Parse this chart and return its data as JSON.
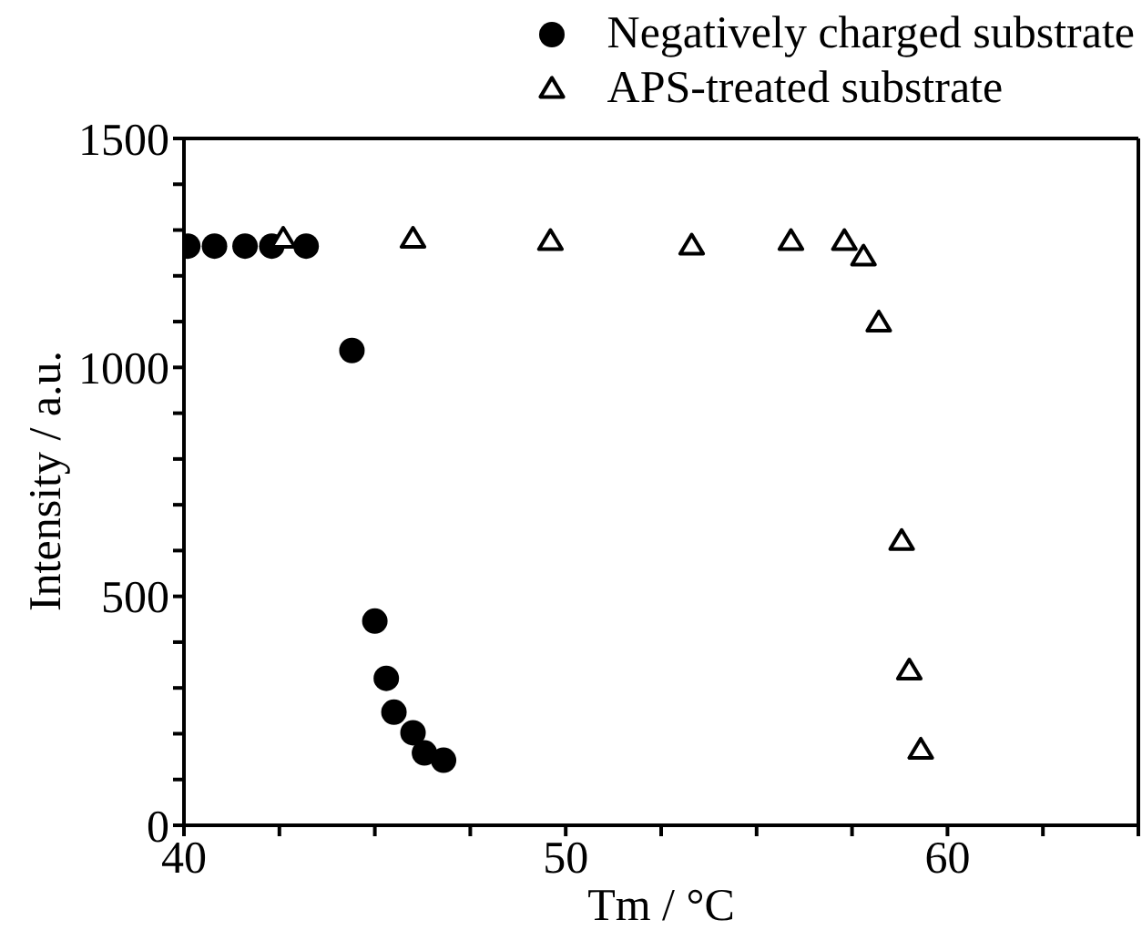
{
  "chart_data": {
    "type": "scatter",
    "xlabel": "Tm / °C",
    "ylabel": "Intensity / a.u.",
    "xlim": [
      40,
      65
    ],
    "ylim": [
      0,
      1500
    ],
    "xticks": [
      40,
      {
        "value": 42.5,
        "label": null
      },
      {
        "value": 45,
        "label": null
      },
      {
        "value": 47.5,
        "label": null
      },
      50,
      {
        "value": 52.5,
        "label": null
      },
      {
        "value": 55,
        "label": null
      },
      {
        "value": 57.5,
        "label": null
      },
      60,
      {
        "value": 62.5,
        "label": null
      },
      {
        "value": 65,
        "label": null
      }
    ],
    "yticks": [
      0,
      {
        "value": 100,
        "label": null
      },
      {
        "value": 200,
        "label": null
      },
      {
        "value": 300,
        "label": null
      },
      {
        "value": 400,
        "label": null
      },
      500,
      {
        "value": 600,
        "label": null
      },
      {
        "value": 700,
        "label": null
      },
      {
        "value": 800,
        "label": null
      },
      {
        "value": 900,
        "label": null
      },
      1000,
      {
        "value": 1100,
        "label": null
      },
      {
        "value": 1200,
        "label": null
      },
      {
        "value": 1300,
        "label": null
      },
      {
        "value": 1400,
        "label": null
      },
      1500
    ],
    "legend": "top right",
    "series": [
      {
        "name": "Negatively charged substrate",
        "color": "#000000",
        "marker": "circle",
        "x": [
          40.1,
          40.8,
          41.6,
          42.3,
          43.2,
          44.4,
          45.0,
          45.3,
          45.5,
          46.0,
          46.3,
          46.8
        ],
        "values": [
          1265,
          1265,
          1265,
          1265,
          1265,
          1037,
          446,
          321,
          247,
          202,
          158,
          142
        ]
      },
      {
        "name": "APS-treated substrate",
        "color": "#000000",
        "marker": "triangle",
        "x": [
          42.6,
          46.0,
          49.6,
          53.3,
          55.9,
          57.3,
          57.8,
          58.2,
          58.8,
          59.0,
          59.3
        ],
        "values": [
          1280,
          1280,
          1275,
          1265,
          1275,
          1275,
          1241,
          1097,
          620,
          337,
          164
        ]
      }
    ]
  }
}
